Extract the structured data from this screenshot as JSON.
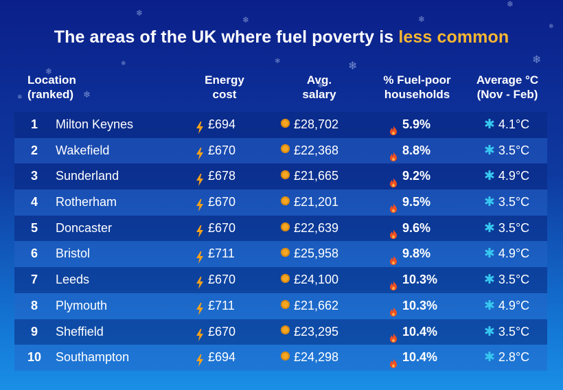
{
  "title": {
    "text_before": "The areas of the UK where fuel poverty is ",
    "highlight": "less common"
  },
  "headers": {
    "location_l1": "Location",
    "location_l2": "(ranked)",
    "energy_l1": "Energy",
    "energy_l2": "cost",
    "salary_l1": "Avg.",
    "salary_l2": "salary",
    "fuel_l1": "% Fuel-poor",
    "fuel_l2": "households",
    "temp_l1": "Average °C",
    "temp_l2": "(Nov - Feb)"
  },
  "rows": [
    {
      "rank": "1",
      "location": "Milton Keynes",
      "energy": "£694",
      "salary": "£28,702",
      "fuel_poor": "5.9%",
      "temp": "4.1°C"
    },
    {
      "rank": "2",
      "location": "Wakefield",
      "energy": "£670",
      "salary": "£22,368",
      "fuel_poor": "8.8%",
      "temp": "3.5°C"
    },
    {
      "rank": "3",
      "location": "Sunderland",
      "energy": "£678",
      "salary": "£21,665",
      "fuel_poor": "9.2%",
      "temp": "4.9°C"
    },
    {
      "rank": "4",
      "location": "Rotherham",
      "energy": "£670",
      "salary": "£21,201",
      "fuel_poor": "9.5%",
      "temp": "3.5°C"
    },
    {
      "rank": "5",
      "location": "Doncaster",
      "energy": "£670",
      "salary": "£22,639",
      "fuel_poor": "9.6%",
      "temp": "3.5°C"
    },
    {
      "rank": "6",
      "location": "Bristol",
      "energy": "£711",
      "salary": "£25,958",
      "fuel_poor": "9.8%",
      "temp": "4.9°C"
    },
    {
      "rank": "7",
      "location": "Leeds",
      "energy": "£670",
      "salary": "£24,100",
      "fuel_poor": "10.3%",
      "temp": "3.5°C"
    },
    {
      "rank": "8",
      "location": "Plymouth",
      "energy": "£711",
      "salary": "£21,662",
      "fuel_poor": "10.3%",
      "temp": "4.9°C"
    },
    {
      "rank": "9",
      "location": "Sheffield",
      "energy": "£670",
      "salary": "£23,295",
      "fuel_poor": "10.4%",
      "temp": "3.5°C"
    },
    {
      "rank": "10",
      "location": "Southampton",
      "energy": "£694",
      "salary": "£24,298",
      "fuel_poor": "10.4%",
      "temp": "2.8°C"
    }
  ],
  "icons": {
    "energy": "lightning-bolt-icon",
    "salary": "coin-icon",
    "fuel_poor": "flame-icon",
    "temp": "snowflake-icon",
    "background": "snowflake-icon"
  },
  "colors": {
    "background_top": "#0b1f8a",
    "background_bottom": "#1a8fe6",
    "highlight": "#f7b731",
    "bolt": "#f7a21b",
    "coin": "#f5a623",
    "flame": "#f04e23",
    "snowflake": "#38c8f0"
  }
}
